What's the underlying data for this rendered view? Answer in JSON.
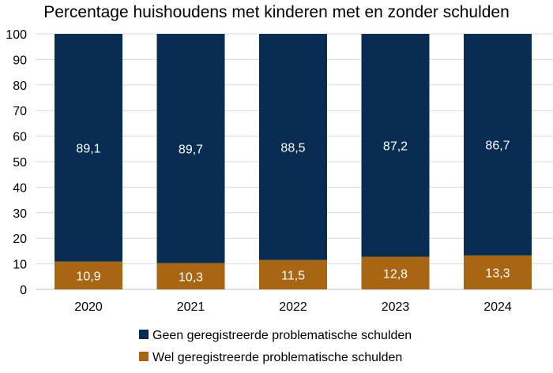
{
  "chart_data": {
    "type": "bar",
    "stacked": true,
    "title": "Percentage huishoudens met kinderen met en zonder schulden",
    "xlabel": "",
    "ylabel": "",
    "ylim": [
      0,
      100
    ],
    "yticks": [
      "0",
      "10",
      "20",
      "30",
      "40",
      "50",
      "60",
      "70",
      "80",
      "90",
      "100"
    ],
    "grid": true,
    "legend_position": "bottom",
    "categories": [
      "2020",
      "2021",
      "2022",
      "2023",
      "2024"
    ],
    "series": [
      {
        "name": "Wel geregistreerde problematische schulden",
        "values": [
          10.9,
          10.3,
          11.5,
          12.8,
          13.3
        ],
        "labels": [
          "10,9",
          "10,3",
          "11,5",
          "12,8",
          "13,3"
        ],
        "color": "#A86512"
      },
      {
        "name": "Geen geregistreerde problematische schulden",
        "values": [
          89.1,
          89.7,
          88.5,
          87.2,
          86.7
        ],
        "labels": [
          "89,1",
          "89,7",
          "88,5",
          "87,2",
          "86,7"
        ],
        "color": "#082C52"
      }
    ],
    "legend_order": [
      1,
      0
    ]
  }
}
